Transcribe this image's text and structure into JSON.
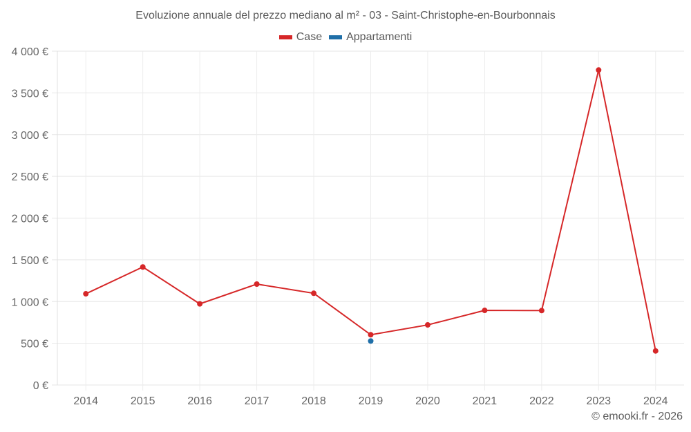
{
  "chart_data": {
    "type": "line",
    "title": "Evoluzione annuale del prezzo mediano al m² - 03 - Saint-Christophe-en-Bourbonnais",
    "xlabel": "",
    "ylabel": "",
    "categories": [
      "2014",
      "2015",
      "2016",
      "2017",
      "2018",
      "2019",
      "2020",
      "2021",
      "2022",
      "2023",
      "2024"
    ],
    "series": [
      {
        "name": "Case",
        "color": "#d62728",
        "values": [
          1093,
          1414,
          972,
          1209,
          1099,
          602,
          720,
          894,
          892,
          3774,
          408
        ]
      },
      {
        "name": "Appartamenti",
        "color": "#1f6fa8",
        "values": [
          null,
          null,
          null,
          null,
          null,
          527,
          null,
          null,
          null,
          null,
          null
        ]
      }
    ],
    "ylim": [
      0,
      4000
    ],
    "yticks": [
      0,
      500,
      1000,
      1500,
      2000,
      2500,
      3000,
      3500,
      4000
    ],
    "ytick_labels": [
      "0 €",
      "500 €",
      "1 000 €",
      "1 500 €",
      "2 000 €",
      "2 500 €",
      "3 000 €",
      "3 500 €",
      "4 000 €"
    ],
    "grid": true,
    "legend_position": "top"
  },
  "legend": [
    {
      "label": "Case",
      "color": "#d62728"
    },
    {
      "label": "Appartamenti",
      "color": "#1f6fa8"
    }
  ],
  "credit": "© emooki.fr - 2026"
}
